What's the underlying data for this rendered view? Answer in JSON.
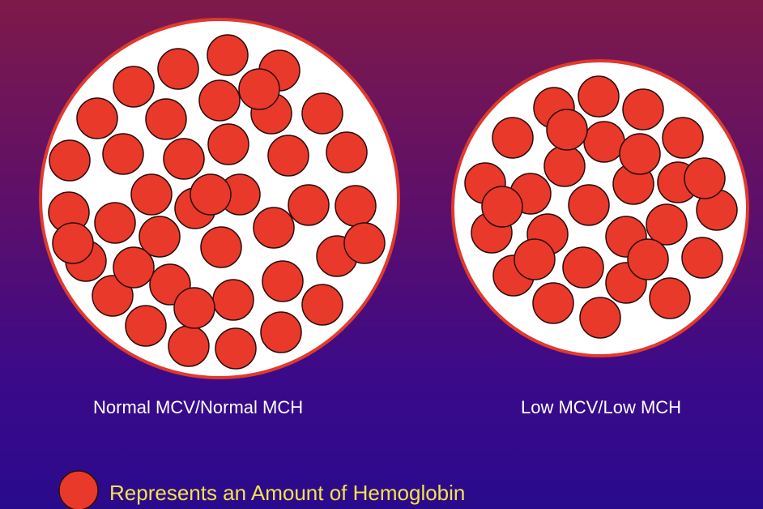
{
  "cells": [
    {
      "label": "Normal MCV/Normal MCH",
      "kind": "normal",
      "hemoglobin_dot_count": 42
    },
    {
      "label": "Low MCV/Low MCH",
      "kind": "low",
      "hemoglobin_dot_count": 30
    }
  ],
  "legend": {
    "text": "Represents an Amount of Hemoglobin"
  },
  "colors": {
    "cell_fill": "#ffffff",
    "cell_border": "#e03a2c",
    "hemoglobin_fill": "#e8392a",
    "hemoglobin_border": "#2a0a0a",
    "legend_text": "#f5e24a",
    "caption_text": "#ffffff"
  }
}
